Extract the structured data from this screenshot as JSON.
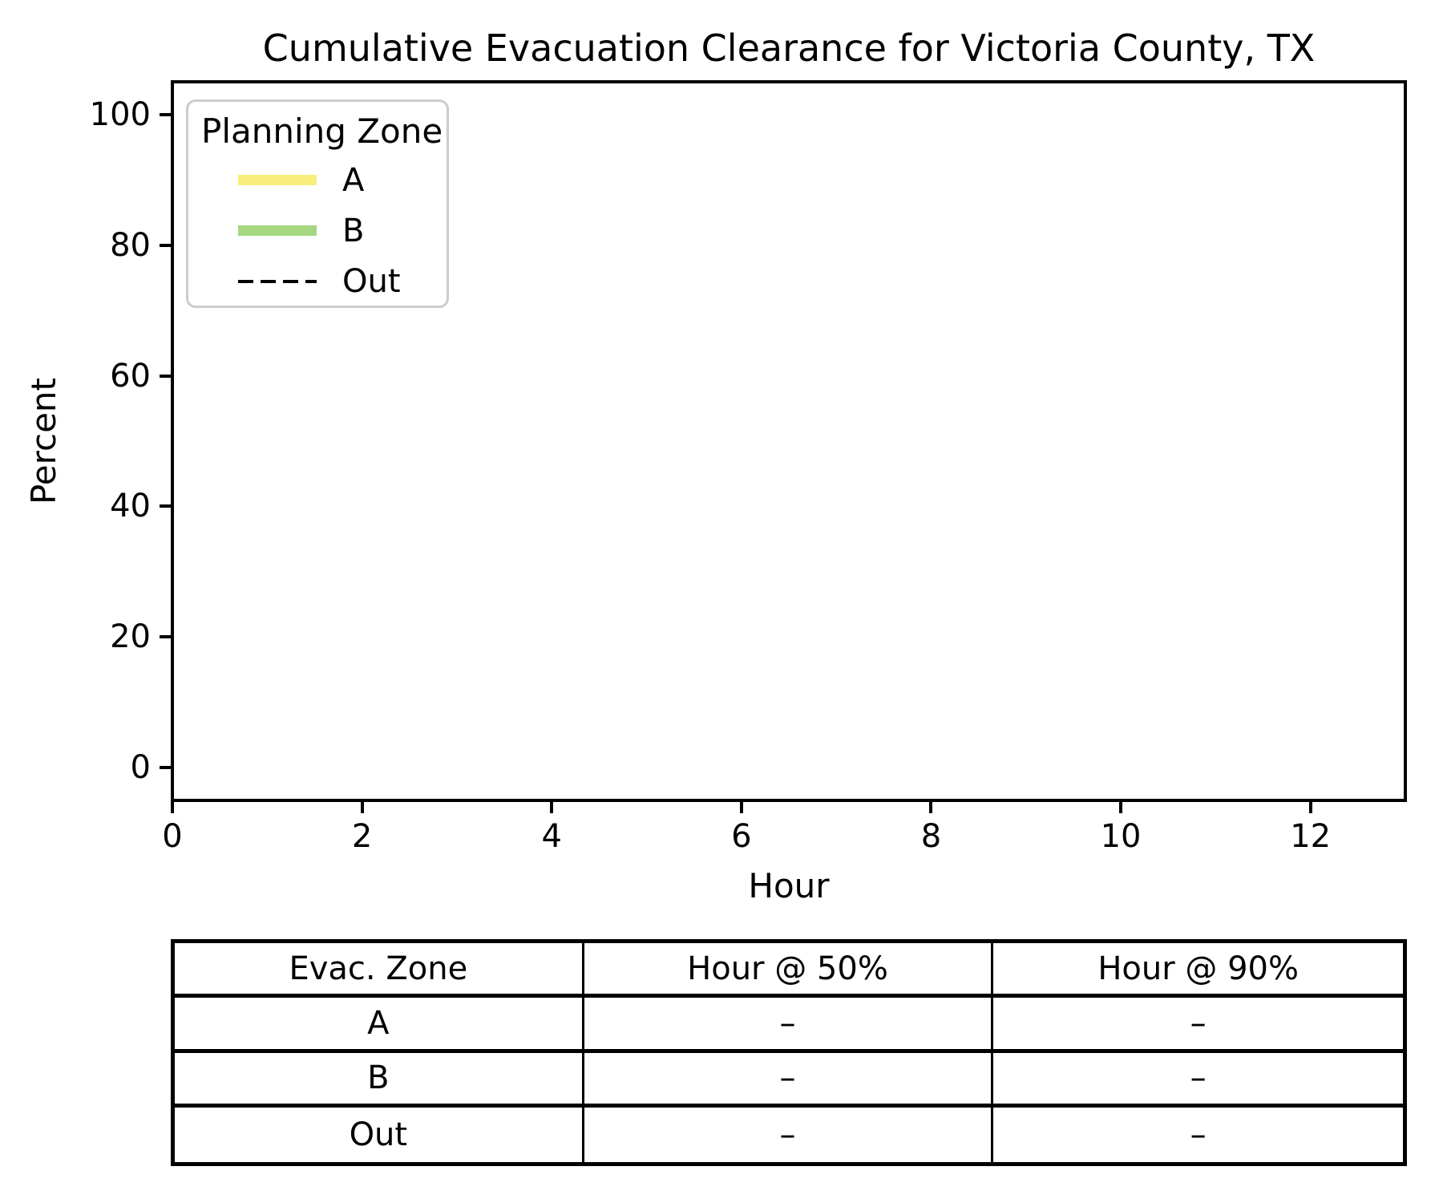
{
  "chart_data": {
    "type": "line",
    "title": "Cumulative Evacuation Clearance for Victoria County, TX",
    "xlabel": "Hour",
    "ylabel": "Percent",
    "xlim": [
      0,
      13
    ],
    "ylim": [
      -5,
      105
    ],
    "xticks": [
      0,
      2,
      4,
      6,
      8,
      10,
      12
    ],
    "yticks": [
      0,
      20,
      40,
      60,
      80,
      100
    ],
    "grid": false,
    "plot_background": "#ffffff",
    "legend": {
      "title": "Planning Zone",
      "position": "upper-left",
      "entries": [
        {
          "label": "A",
          "color": "#f9ee7d",
          "linestyle": "solid",
          "thickness": "thick"
        },
        {
          "label": "B",
          "color": "#a5d780",
          "linestyle": "solid",
          "thickness": "thick"
        },
        {
          "label": "Out",
          "color": "#000000",
          "linestyle": "dashed",
          "thickness": "thin"
        }
      ]
    },
    "series": [
      {
        "name": "A",
        "color": "#f9ee7d",
        "linestyle": "solid",
        "x": [],
        "y": []
      },
      {
        "name": "B",
        "color": "#a5d780",
        "linestyle": "solid",
        "x": [],
        "y": []
      },
      {
        "name": "Out",
        "color": "#000000",
        "linestyle": "dashed",
        "x": [],
        "y": []
      }
    ]
  },
  "summary_table": {
    "headers": [
      "Evac. Zone",
      "Hour @ 50%",
      "Hour @ 90%"
    ],
    "rows": [
      [
        "A",
        "–",
        "–"
      ],
      [
        "B",
        "–",
        "–"
      ],
      [
        "Out",
        "–",
        "–"
      ]
    ]
  }
}
